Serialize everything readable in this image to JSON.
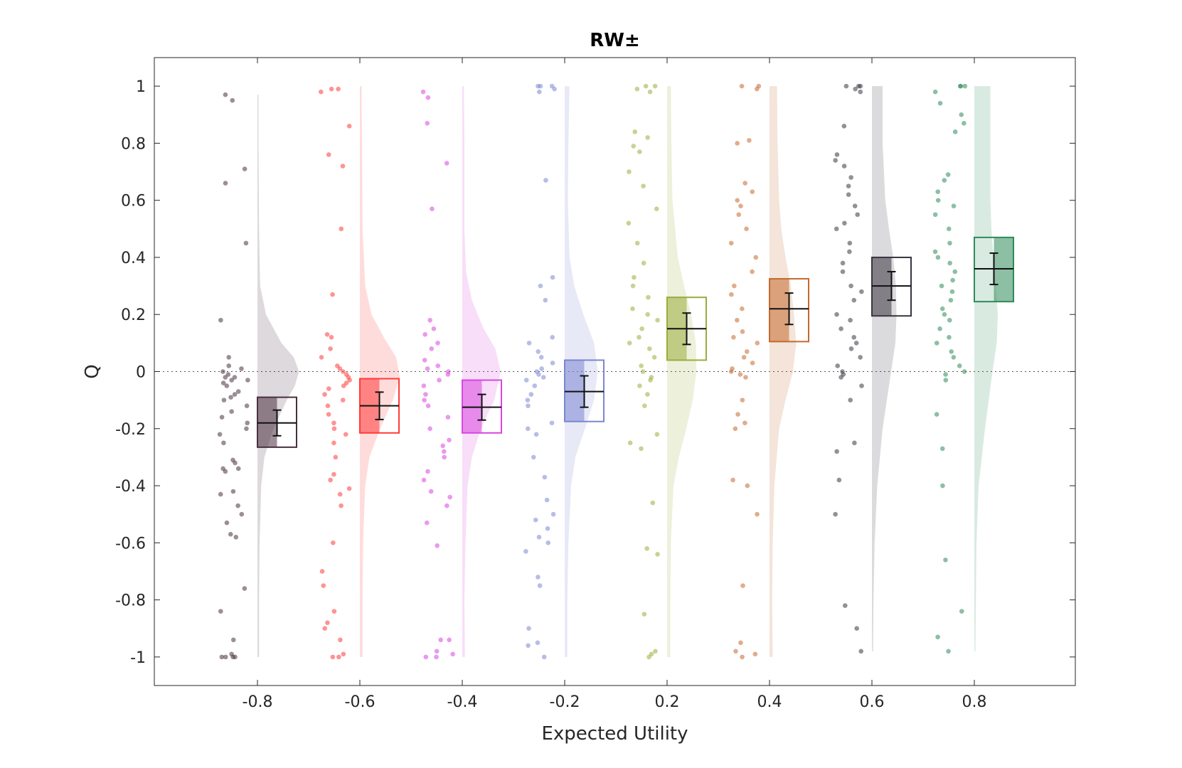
{
  "chart_data": {
    "type": "raincloud",
    "title": "RW±",
    "xlabel": "Expected Utility",
    "ylabel": "Q",
    "ylim": [
      -1.1,
      1.1
    ],
    "yticks": [
      -1,
      -0.8,
      -0.6,
      -0.4,
      -0.2,
      0,
      0.2,
      0.4,
      0.6,
      0.8,
      1
    ],
    "ytick_labels": [
      "-1",
      "-0.8",
      "-0.6",
      "-0.4",
      "-0.2",
      "0",
      "0.2",
      "0.4",
      "0.6",
      "0.8",
      "1"
    ],
    "categories": [
      "-0.8",
      "-0.6",
      "-0.4",
      "-0.2",
      "0.2",
      "0.4",
      "0.6",
      "0.8"
    ],
    "reference_line": {
      "y": 0,
      "style": "dotted"
    },
    "grid": false,
    "legend": "none",
    "groups": [
      {
        "label": "-0.8",
        "color": "#4a2f3f",
        "mean": -0.18,
        "sem": 0.045,
        "box": [
          -0.265,
          -0.09
        ],
        "fill_side": "left",
        "density": [
          [
            -1,
            0.03
          ],
          [
            -0.8,
            0.03
          ],
          [
            -0.6,
            0.04
          ],
          [
            -0.4,
            0.07
          ],
          [
            -0.3,
            0.13
          ],
          [
            -0.2,
            0.3
          ],
          [
            -0.1,
            0.55
          ],
          [
            -0.05,
            0.7
          ],
          [
            0,
            0.78
          ],
          [
            0.05,
            0.68
          ],
          [
            0.1,
            0.45
          ],
          [
            0.2,
            0.16
          ],
          [
            0.3,
            0.05
          ],
          [
            0.5,
            0.03
          ],
          [
            0.8,
            0.02
          ],
          [
            0.97,
            0.02
          ]
        ],
        "points": [
          -1,
          -1,
          -1,
          -1,
          -0.99,
          -0.94,
          -0.84,
          -0.76,
          -0.58,
          -0.57,
          -0.53,
          -0.5,
          -0.47,
          -0.43,
          -0.42,
          -0.35,
          -0.34,
          -0.34,
          -0.32,
          -0.31,
          -0.25,
          -0.22,
          -0.2,
          -0.18,
          -0.16,
          -0.14,
          -0.12,
          -0.1,
          -0.09,
          -0.08,
          -0.07,
          -0.05,
          -0.04,
          -0.03,
          -0.03,
          -0.02,
          -0.02,
          -0.01,
          0,
          0.01,
          0.02,
          0.05,
          0.18,
          0.45,
          0.66,
          0.71,
          0.95,
          0.97
        ]
      },
      {
        "label": "-0.6",
        "color": "#ff3b3b",
        "mean": -0.12,
        "sem": 0.048,
        "box": [
          -0.215,
          -0.025
        ],
        "fill_side": "left",
        "density": [
          [
            -1,
            0.05
          ],
          [
            -0.8,
            0.05
          ],
          [
            -0.6,
            0.06
          ],
          [
            -0.4,
            0.1
          ],
          [
            -0.3,
            0.18
          ],
          [
            -0.2,
            0.38
          ],
          [
            -0.1,
            0.62
          ],
          [
            -0.02,
            0.75
          ],
          [
            0.05,
            0.68
          ],
          [
            0.12,
            0.45
          ],
          [
            0.2,
            0.22
          ],
          [
            0.3,
            0.1
          ],
          [
            0.5,
            0.05
          ],
          [
            0.8,
            0.04
          ],
          [
            1,
            0.03
          ]
        ],
        "points": [
          -1,
          -1,
          -0.99,
          -0.94,
          -0.9,
          -0.88,
          -0.84,
          -0.75,
          -0.7,
          -0.6,
          -0.47,
          -0.43,
          -0.41,
          -0.38,
          -0.36,
          -0.3,
          -0.25,
          -0.22,
          -0.2,
          -0.18,
          -0.15,
          -0.12,
          -0.1,
          -0.08,
          -0.06,
          -0.05,
          -0.04,
          -0.03,
          -0.02,
          -0.01,
          0,
          0.01,
          0.02,
          0.05,
          0.08,
          0.12,
          0.13,
          0.27,
          0.5,
          0.72,
          0.76,
          0.86,
          0.98,
          0.99,
          0.99
        ]
      },
      {
        "label": "-0.4",
        "color": "#d946e0",
        "mean": -0.125,
        "sem": 0.045,
        "box": [
          -0.215,
          -0.03
        ],
        "fill_side": "left",
        "density": [
          [
            -1,
            0.05
          ],
          [
            -0.8,
            0.04
          ],
          [
            -0.6,
            0.06
          ],
          [
            -0.4,
            0.1
          ],
          [
            -0.3,
            0.18
          ],
          [
            -0.2,
            0.35
          ],
          [
            -0.1,
            0.6
          ],
          [
            0,
            0.72
          ],
          [
            0.08,
            0.62
          ],
          [
            0.15,
            0.4
          ],
          [
            0.25,
            0.18
          ],
          [
            0.35,
            0.07
          ],
          [
            0.5,
            0.04
          ],
          [
            0.8,
            0.04
          ],
          [
            1,
            0.03
          ]
        ],
        "points": [
          -1,
          -1,
          -0.99,
          -0.98,
          -0.94,
          -0.94,
          -0.61,
          -0.53,
          -0.47,
          -0.44,
          -0.42,
          -0.38,
          -0.35,
          -0.3,
          -0.28,
          -0.26,
          -0.24,
          -0.2,
          -0.16,
          -0.12,
          -0.1,
          -0.08,
          -0.05,
          -0.03,
          -0.01,
          0,
          0.01,
          0.02,
          0.04,
          0.08,
          0.1,
          0.13,
          0.15,
          0.18,
          0.57,
          0.73,
          0.87,
          0.96,
          0.98
        ]
      },
      {
        "label": "-0.2",
        "color": "#7b86d1",
        "mean": -0.07,
        "sem": 0.055,
        "box": [
          -0.175,
          0.04
        ],
        "fill_side": "left",
        "density": [
          [
            -1,
            0.05
          ],
          [
            -0.8,
            0.05
          ],
          [
            -0.6,
            0.07
          ],
          [
            -0.4,
            0.12
          ],
          [
            -0.3,
            0.2
          ],
          [
            -0.2,
            0.38
          ],
          [
            -0.1,
            0.55
          ],
          [
            0,
            0.62
          ],
          [
            0.1,
            0.55
          ],
          [
            0.2,
            0.35
          ],
          [
            0.3,
            0.18
          ],
          [
            0.4,
            0.09
          ],
          [
            0.6,
            0.06
          ],
          [
            0.8,
            0.07
          ],
          [
            1,
            0.09
          ]
        ],
        "points": [
          -1,
          -0.96,
          -0.95,
          -0.9,
          -0.75,
          -0.72,
          -0.63,
          -0.6,
          -0.58,
          -0.55,
          -0.52,
          -0.5,
          -0.45,
          -0.37,
          -0.3,
          -0.22,
          -0.2,
          -0.18,
          -0.12,
          -0.1,
          -0.08,
          -0.05,
          -0.03,
          -0.02,
          -0.01,
          0,
          0.01,
          0.03,
          0.05,
          0.07,
          0.1,
          0.12,
          0.25,
          0.3,
          0.33,
          0.67,
          0.98,
          0.99,
          1,
          1,
          1
        ]
      },
      {
        "label": "0.2",
        "color": "#9aad3a",
        "mean": 0.15,
        "sem": 0.055,
        "box": [
          0.04,
          0.26
        ],
        "fill_side": "left",
        "density": [
          [
            -1,
            0.06
          ],
          [
            -0.8,
            0.06
          ],
          [
            -0.6,
            0.07
          ],
          [
            -0.4,
            0.12
          ],
          [
            -0.3,
            0.22
          ],
          [
            -0.2,
            0.36
          ],
          [
            -0.1,
            0.48
          ],
          [
            0,
            0.55
          ],
          [
            0.1,
            0.54
          ],
          [
            0.2,
            0.45
          ],
          [
            0.3,
            0.32
          ],
          [
            0.4,
            0.2
          ],
          [
            0.6,
            0.1
          ],
          [
            0.8,
            0.08
          ],
          [
            1,
            0.07
          ]
        ],
        "points": [
          -1,
          -0.99,
          -0.98,
          -0.85,
          -0.64,
          -0.62,
          -0.46,
          -0.27,
          -0.25,
          -0.22,
          -0.12,
          -0.08,
          -0.05,
          -0.03,
          -0.02,
          0,
          0.02,
          0.05,
          0.08,
          0.1,
          0.12,
          0.15,
          0.18,
          0.2,
          0.22,
          0.26,
          0.3,
          0.33,
          0.38,
          0.45,
          0.52,
          0.57,
          0.65,
          0.7,
          0.77,
          0.79,
          0.82,
          0.84,
          0.98,
          0.99,
          1,
          1
        ]
      },
      {
        "label": "0.4",
        "color": "#c46a2e",
        "mean": 0.22,
        "sem": 0.055,
        "box": [
          0.105,
          0.325
        ],
        "fill_side": "left",
        "density": [
          [
            -1,
            0.06
          ],
          [
            -0.8,
            0.05
          ],
          [
            -0.6,
            0.06
          ],
          [
            -0.4,
            0.09
          ],
          [
            -0.2,
            0.18
          ],
          [
            -0.1,
            0.3
          ],
          [
            0,
            0.44
          ],
          [
            0.1,
            0.5
          ],
          [
            0.2,
            0.46
          ],
          [
            0.3,
            0.4
          ],
          [
            0.4,
            0.3
          ],
          [
            0.5,
            0.22
          ],
          [
            0.6,
            0.18
          ],
          [
            0.8,
            0.15
          ],
          [
            1,
            0.14
          ]
        ],
        "points": [
          -1,
          -0.99,
          -0.98,
          -0.95,
          -0.75,
          -0.5,
          -0.4,
          -0.38,
          -0.2,
          -0.18,
          -0.15,
          -0.1,
          -0.02,
          -0.01,
          0,
          0.01,
          0.03,
          0.05,
          0.07,
          0.1,
          0.12,
          0.14,
          0.18,
          0.22,
          0.27,
          0.3,
          0.35,
          0.4,
          0.45,
          0.5,
          0.55,
          0.58,
          0.6,
          0.63,
          0.66,
          0.8,
          0.81,
          0.99,
          1,
          1
        ]
      },
      {
        "label": "0.6",
        "color": "#3a3440",
        "mean": 0.3,
        "sem": 0.05,
        "box": [
          0.195,
          0.4
        ],
        "fill_side": "left",
        "density": [
          [
            -0.98,
            0.02
          ],
          [
            -0.8,
            0.03
          ],
          [
            -0.6,
            0.05
          ],
          [
            -0.4,
            0.1
          ],
          [
            -0.2,
            0.2
          ],
          [
            0,
            0.36
          ],
          [
            0.1,
            0.44
          ],
          [
            0.2,
            0.46
          ],
          [
            0.3,
            0.45
          ],
          [
            0.4,
            0.4
          ],
          [
            0.5,
            0.32
          ],
          [
            0.6,
            0.25
          ],
          [
            0.8,
            0.2
          ],
          [
            1,
            0.2
          ]
        ],
        "points": [
          -0.98,
          -0.9,
          -0.82,
          -0.5,
          -0.38,
          -0.28,
          -0.25,
          -0.1,
          -0.05,
          -0.02,
          -0.01,
          0,
          0.02,
          0.05,
          0.08,
          0.1,
          0.12,
          0.15,
          0.18,
          0.2,
          0.25,
          0.28,
          0.3,
          0.35,
          0.38,
          0.42,
          0.45,
          0.5,
          0.52,
          0.55,
          0.58,
          0.62,
          0.65,
          0.68,
          0.72,
          0.74,
          0.76,
          0.86,
          0.98,
          0.99,
          1,
          1,
          1
        ]
      },
      {
        "label": "0.8",
        "color": "#2e8b57",
        "mean": 0.36,
        "sem": 0.055,
        "box": [
          0.245,
          0.47
        ],
        "fill_side": "right",
        "density": [
          [
            -0.98,
            0.02
          ],
          [
            -0.8,
            0.03
          ],
          [
            -0.6,
            0.04
          ],
          [
            -0.4,
            0.08
          ],
          [
            -0.2,
            0.2
          ],
          [
            0,
            0.34
          ],
          [
            0.1,
            0.42
          ],
          [
            0.2,
            0.44
          ],
          [
            0.3,
            0.4
          ],
          [
            0.4,
            0.36
          ],
          [
            0.5,
            0.32
          ],
          [
            0.6,
            0.3
          ],
          [
            0.8,
            0.3
          ],
          [
            1,
            0.3
          ]
        ],
        "points": [
          -0.98,
          -0.93,
          -0.84,
          -0.66,
          -0.4,
          -0.27,
          -0.15,
          -0.03,
          -0.01,
          0,
          0.02,
          0.05,
          0.07,
          0.1,
          0.12,
          0.15,
          0.18,
          0.2,
          0.22,
          0.25,
          0.28,
          0.3,
          0.32,
          0.35,
          0.38,
          0.4,
          0.42,
          0.45,
          0.5,
          0.55,
          0.58,
          0.6,
          0.63,
          0.67,
          0.69,
          0.84,
          0.87,
          0.9,
          0.94,
          0.98,
          1,
          1,
          1
        ]
      }
    ]
  }
}
